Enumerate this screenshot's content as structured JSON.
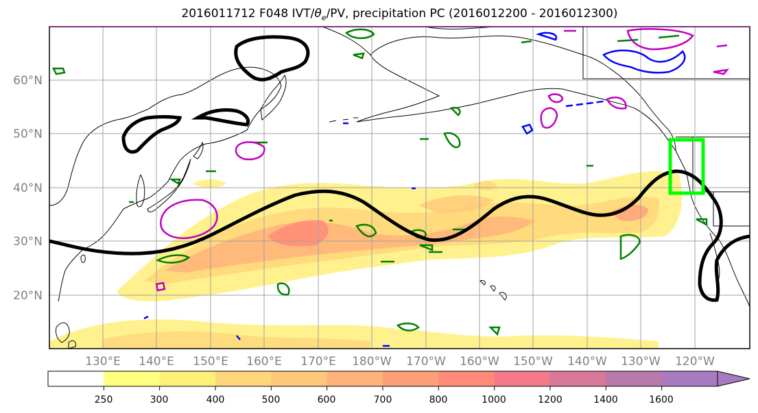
{
  "title_prefix": "2016011712 F048 IVT/",
  "title_theta": "θ",
  "title_theta_sub": "e",
  "title_suffix": "/PV, precipitation PC (2016012200 - 2016012300)",
  "lat_labels": [
    "60°N",
    "50°N",
    "40°N",
    "30°N",
    "20°N"
  ],
  "lon_labels": [
    "130°E",
    "140°E",
    "150°E",
    "160°E",
    "170°E",
    "180°W",
    "170°W",
    "160°W",
    "150°W",
    "140°W",
    "130°W",
    "120°W"
  ],
  "colorbar": {
    "levels": [
      "250",
      "300",
      "400",
      "500",
      "600",
      "700",
      "800",
      "1000",
      "1200",
      "1400",
      "1600"
    ],
    "colors": [
      "#ffffff",
      "#ffff80",
      "#fff07a",
      "#ffd77a",
      "#ffc77a",
      "#ffb37a",
      "#ff9f7a",
      "#ff8a7a",
      "#f47a8a",
      "#d8789a",
      "#b87aaa",
      "#a87ac0"
    ]
  },
  "colors": {
    "ivt_contour": "#000000",
    "pv_positive": "#008000",
    "pv_negative": "#0000ff",
    "theta_e": "#c000c0",
    "focus_box": "#00ff00",
    "coastline": "#000000"
  }
}
